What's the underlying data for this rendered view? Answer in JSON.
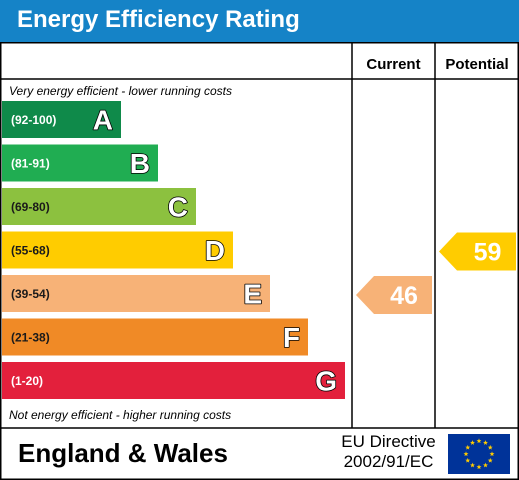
{
  "header": {
    "title": "Energy Efficiency Rating"
  },
  "chart_data": {
    "type": "bar",
    "columns": [
      "Current",
      "Potential"
    ],
    "top_caption": "Very energy efficient - lower running costs",
    "bottom_caption": "Not energy efficient - higher running costs",
    "bands": [
      {
        "range": "(92-100)",
        "letter": "A",
        "color": "#0f8a4a"
      },
      {
        "range": "(81-91)",
        "letter": "B",
        "color": "#20ad52"
      },
      {
        "range": "(69-80)",
        "letter": "C",
        "color": "#8cc13f"
      },
      {
        "range": "(55-68)",
        "letter": "D",
        "color": "#ffcc00"
      },
      {
        "range": "(39-54)",
        "letter": "E",
        "color": "#f7b277"
      },
      {
        "range": "(21-38)",
        "letter": "F",
        "color": "#f08a26"
      },
      {
        "range": "(1-20)",
        "letter": "G",
        "color": "#e3203c"
      }
    ],
    "ratings": [
      {
        "column": "Current",
        "value": 46,
        "band": "E",
        "color": "#f7b277"
      },
      {
        "column": "Potential",
        "value": 59,
        "band": "D",
        "color": "#ffcc00"
      }
    ]
  },
  "footer": {
    "region": "England & Wales",
    "directive_line1": "EU Directive",
    "directive_line2": "2002/91/EC",
    "flag_icon": "eu-flag-icon",
    "flag_color": "#003399",
    "star_color": "#ffcc00"
  }
}
